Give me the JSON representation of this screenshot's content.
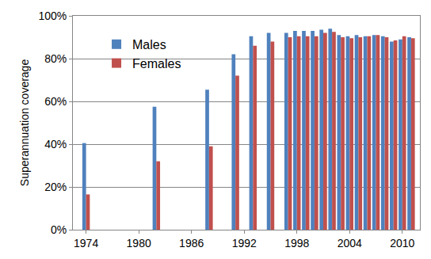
{
  "chart_data": {
    "type": "bar",
    "y_label": "Superannuation coverage",
    "x": [
      1974,
      1982,
      1988,
      1991,
      1993,
      1995,
      1997,
      1998,
      1999,
      2000,
      2001,
      2002,
      2003,
      2004,
      2005,
      2006,
      2007,
      2008,
      2009,
      2010,
      2011
    ],
    "series": [
      {
        "name": "Males",
        "color": "#4f81bd",
        "values": [
          40.5,
          57.5,
          65.5,
          82,
          90.5,
          92,
          92,
          93,
          93,
          93,
          93.5,
          94,
          91,
          90.5,
          91,
          90.5,
          91,
          90.5,
          88,
          89,
          90
        ]
      },
      {
        "name": "Females",
        "color": "#c0504d",
        "values": [
          16.5,
          32,
          39,
          72,
          86,
          88,
          90,
          90.5,
          90.5,
          90.5,
          92,
          92.5,
          90,
          89.5,
          90,
          90.5,
          91,
          90,
          88.5,
          90.5,
          89.5
        ]
      }
    ],
    "xlim": [
      1972.5,
      2012
    ],
    "xticks": [
      1974,
      1980,
      1986,
      1992,
      1998,
      2004,
      2010
    ],
    "ylim": [
      0,
      100
    ],
    "yticks": [
      {
        "value": 0,
        "label": "0%"
      },
      {
        "value": 20,
        "label": "20%"
      },
      {
        "value": 40,
        "label": "40%"
      },
      {
        "value": 60,
        "label": "60%"
      },
      {
        "value": 80,
        "label": "80%"
      },
      {
        "value": 100,
        "label": "100%"
      }
    ],
    "grid": true,
    "legend": "upper left"
  }
}
